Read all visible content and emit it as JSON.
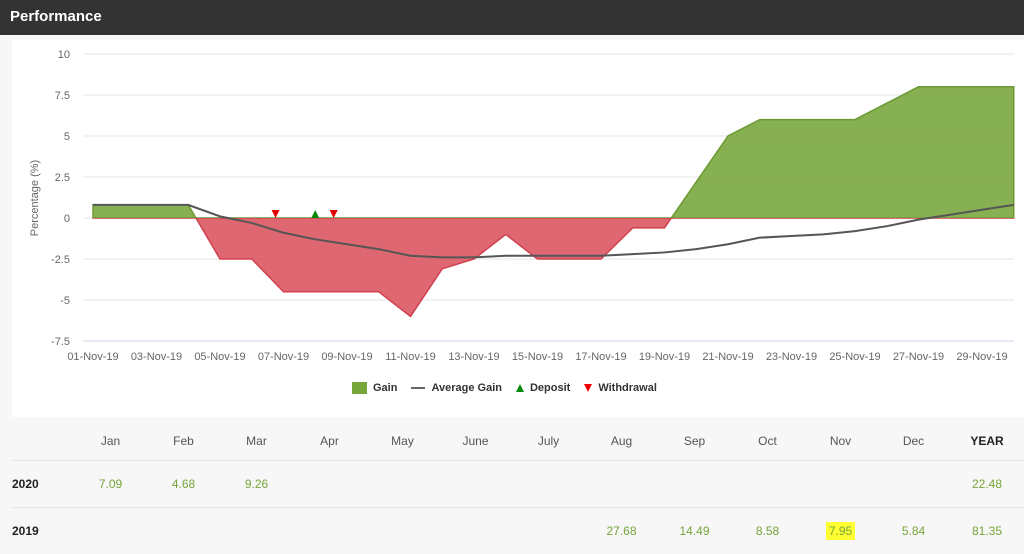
{
  "header": {
    "title": "Performance"
  },
  "colors": {
    "gain": "#76a53a",
    "loss": "#dc5a66",
    "average": "#555555",
    "deposit": "#0a8a0a",
    "withdrawal": "#e00000",
    "highlight": "#ffff33"
  },
  "chart_data": {
    "type": "area",
    "ylabel": "Percentage (%)",
    "ylim": [
      -7.5,
      10
    ],
    "yticks": [
      10,
      7.5,
      5,
      2.5,
      0,
      -2.5,
      -5,
      -7.5
    ],
    "ytick_labels": [
      "10",
      "7.5",
      "5",
      "2.5",
      "0",
      "-2.5",
      "-5",
      "-7.5"
    ],
    "xlim": [
      "01-Nov-19",
      "30-Nov-19"
    ],
    "xtick_labels": [
      "01-Nov-19",
      "03-Nov-19",
      "05-Nov-19",
      "07-Nov-19",
      "09-Nov-19",
      "11-Nov-19",
      "13-Nov-19",
      "15-Nov-19",
      "17-Nov-19",
      "19-Nov-19",
      "21-Nov-19",
      "23-Nov-19",
      "25-Nov-19",
      "27-Nov-19",
      "29-Nov-19"
    ],
    "grid": true,
    "legend_placement": "bottom",
    "x": [
      "01-Nov-19",
      "02-Nov-19",
      "03-Nov-19",
      "04-Nov-19",
      "05-Nov-19",
      "06-Nov-19",
      "07-Nov-19",
      "08-Nov-19",
      "09-Nov-19",
      "10-Nov-19",
      "11-Nov-19",
      "12-Nov-19",
      "13-Nov-19",
      "14-Nov-19",
      "15-Nov-19",
      "16-Nov-19",
      "17-Nov-19",
      "18-Nov-19",
      "19-Nov-19",
      "20-Nov-19",
      "21-Nov-19",
      "22-Nov-19",
      "23-Nov-19",
      "24-Nov-19",
      "25-Nov-19",
      "26-Nov-19",
      "27-Nov-19",
      "28-Nov-19",
      "29-Nov-19",
      "30-Nov-19"
    ],
    "series": [
      {
        "name": "Gain",
        "values": [
          0.8,
          0.8,
          0.8,
          0.8,
          -2.5,
          -2.5,
          -4.5,
          -4.5,
          -4.5,
          -4.5,
          -6,
          -3.1,
          -2.5,
          -1,
          -2.5,
          -2.5,
          -2.5,
          -0.6,
          -0.6,
          2.2,
          5,
          6,
          6,
          6,
          6,
          7,
          8,
          8,
          8,
          8
        ]
      },
      {
        "name": "Average Gain",
        "values": [
          0.8,
          0.8,
          0.8,
          0.8,
          0.1,
          -0.3,
          -0.9,
          -1.3,
          -1.6,
          -1.9,
          -2.3,
          -2.4,
          -2.4,
          -2.3,
          -2.3,
          -2.3,
          -2.3,
          -2.2,
          -2.1,
          -1.9,
          -1.6,
          -1.2,
          -1.1,
          -1.0,
          -0.8,
          -0.5,
          -0.1,
          0.2,
          0.5,
          0.8
        ]
      }
    ],
    "deposits": [
      {
        "x": "08-Nov-19",
        "value": 0
      }
    ],
    "withdrawals": [
      {
        "x": "07-Nov-19",
        "value": 0
      },
      {
        "x": "08-Nov-19",
        "value": 0
      }
    ],
    "legend": [
      "Gain",
      "Average Gain",
      "Deposit",
      "Withdrawal"
    ]
  },
  "table": {
    "columns": [
      "Jan",
      "Feb",
      "Mar",
      "Apr",
      "May",
      "June",
      "July",
      "Aug",
      "Sep",
      "Oct",
      "Nov",
      "Dec",
      "YEAR"
    ],
    "rows": [
      {
        "year": "2020",
        "values": [
          "7.09",
          "4.68",
          "9.26",
          "",
          "",
          "",
          "",
          "",
          "",
          "",
          "",
          "",
          "22.48"
        ]
      },
      {
        "year": "2019",
        "values": [
          "",
          "",
          "",
          "",
          "",
          "",
          "",
          "27.68",
          "14.49",
          "8.58",
          "7.95",
          "5.84",
          "81.35"
        ]
      }
    ],
    "highlighted": {
      "row": "2019",
      "column": "Nov"
    }
  }
}
